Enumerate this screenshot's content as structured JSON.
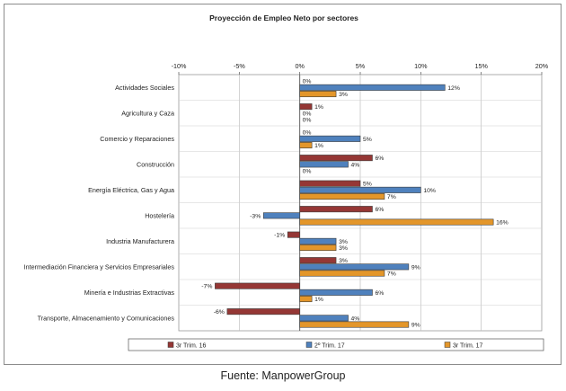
{
  "source": "Fuente: ManpowerGroup",
  "chart_data": {
    "type": "bar",
    "orientation": "horizontal",
    "title": "Proyección de Empleo Neto por sectores",
    "xlabel": "",
    "ylabel": "",
    "xlim": [
      -10,
      20
    ],
    "x_ticks": [
      -10,
      -5,
      0,
      5,
      10,
      15,
      20
    ],
    "x_tick_labels": [
      "-10%",
      "-5%",
      "0%",
      "5%",
      "10%",
      "15%",
      "20%"
    ],
    "grid": true,
    "legend_position": "bottom",
    "categories": [
      "Actividades Sociales",
      "Agricultura y Caza",
      "Comercio y Reparaciones",
      "Construcción",
      "Energía Eléctrica, Gas y Agua",
      "Hostelería",
      "Industria Manufacturera",
      "Intermediación Financiera y Servicios Empresariales",
      "Minería e Industrias Extractivas",
      "Transporte, Almacenamiento y Comunicaciones"
    ],
    "series": [
      {
        "name": "3r Trim. 16",
        "color": "#953735",
        "values": [
          0,
          1,
          0,
          6,
          5,
          6,
          -1,
          3,
          -7,
          -6
        ],
        "labels": [
          "0%",
          "1%",
          "0%",
          "6%",
          "5%",
          "6%",
          "-1%",
          "3%",
          "-7%",
          "-6%"
        ]
      },
      {
        "name": "2º Trim. 17",
        "color": "#4f81bd",
        "values": [
          12,
          0,
          5,
          4,
          10,
          -3,
          3,
          9,
          6,
          4
        ],
        "labels": [
          "12%",
          "0%",
          "5%",
          "4%",
          "10%",
          "-3%",
          "3%",
          "9%",
          "6%",
          "4%"
        ]
      },
      {
        "name": "3r Trim. 17",
        "color": "#e3962a",
        "values": [
          3,
          0,
          1,
          0,
          7,
          16,
          3,
          7,
          1,
          9
        ],
        "labels": [
          "3%",
          "0%",
          "1%",
          "0%",
          "7%",
          "16%",
          "3%",
          "7%",
          "1%",
          "9%"
        ]
      }
    ]
  }
}
